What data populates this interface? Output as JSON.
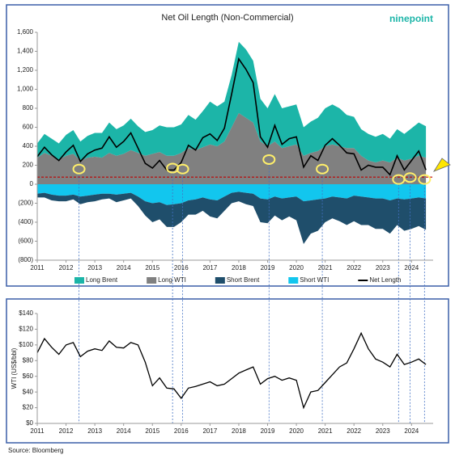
{
  "logo": "ninepoint",
  "source": "Source: Bloomberg",
  "chart_data": [
    {
      "type": "area",
      "title": "Net Oil Length (Non-Commercial)",
      "stacked": true,
      "legend": "bottom",
      "x": [
        2011,
        2011.25,
        2011.5,
        2011.75,
        2012,
        2012.25,
        2012.5,
        2012.75,
        2013,
        2013.25,
        2013.5,
        2013.75,
        2014,
        2014.25,
        2014.5,
        2014.75,
        2015,
        2015.25,
        2015.5,
        2015.75,
        2016,
        2016.25,
        2016.5,
        2016.75,
        2017,
        2017.25,
        2017.5,
        2017.75,
        2018,
        2018.25,
        2018.5,
        2018.75,
        2019,
        2019.25,
        2019.5,
        2019.75,
        2020,
        2020.25,
        2020.5,
        2020.75,
        2021,
        2021.25,
        2021.5,
        2021.75,
        2022,
        2022.25,
        2022.5,
        2022.75,
        2023,
        2023.25,
        2023.5,
        2023.75,
        2024,
        2024.25,
        2024.5
      ],
      "xlim": [
        2011,
        2024.75
      ],
      "xticks": [
        2011,
        2012,
        2013,
        2014,
        2015,
        2016,
        2017,
        2018,
        2019,
        2020,
        2021,
        2022,
        2023,
        2024
      ],
      "ylim": [
        -800,
        1600
      ],
      "yticks": [
        {
          "value": -800,
          "label": "(800)"
        },
        {
          "value": -600,
          "label": "(600)"
        },
        {
          "value": -400,
          "label": "(400)"
        },
        {
          "value": -200,
          "label": "(200)"
        },
        0,
        200,
        400,
        600,
        800,
        {
          "value": 1000,
          "label": "1,000"
        },
        {
          "value": 1200,
          "label": "1,200"
        },
        {
          "value": 1400,
          "label": "1,400"
        },
        {
          "value": 1600,
          "label": "1,600"
        }
      ],
      "reference_line": 75,
      "highlights": [
        {
          "x": 2012.45,
          "y": 160
        },
        {
          "x": 2015.7,
          "y": 170
        },
        {
          "x": 2016.05,
          "y": 160
        },
        {
          "x": 2019.05,
          "y": 260
        },
        {
          "x": 2020.9,
          "y": 160
        },
        {
          "x": 2023.55,
          "y": 50
        },
        {
          "x": 2023.95,
          "y": 70
        },
        {
          "x": 2024.45,
          "y": 50
        }
      ],
      "series": [
        {
          "name": "Long Brent",
          "color": "#1cb5a8",
          "values": [
            150,
            200,
            180,
            170,
            220,
            250,
            200,
            230,
            250,
            260,
            320,
            280,
            300,
            330,
            280,
            250,
            250,
            280,
            300,
            300,
            300,
            350,
            320,
            380,
            450,
            420,
            420,
            550,
            750,
            720,
            650,
            450,
            400,
            500,
            420,
            420,
            420,
            300,
            330,
            350,
            400,
            420,
            400,
            350,
            330,
            280,
            280,
            270,
            280,
            250,
            300,
            280,
            320,
            350,
            330
          ]
        },
        {
          "name": "Long WTI",
          "color": "#808080",
          "values": [
            280,
            330,
            300,
            260,
            300,
            320,
            250,
            280,
            290,
            280,
            330,
            300,
            320,
            360,
            330,
            300,
            320,
            340,
            300,
            300,
            330,
            380,
            360,
            390,
            420,
            400,
            450,
            600,
            750,
            700,
            650,
            450,
            400,
            450,
            380,
            400,
            420,
            300,
            330,
            350,
            400,
            420,
            400,
            380,
            380,
            300,
            250,
            230,
            250,
            230,
            280,
            250,
            270,
            300,
            280
          ]
        },
        {
          "name": "Short Brent",
          "color": "#1f4e6b",
          "values": [
            -40,
            -50,
            -60,
            -60,
            -60,
            -50,
            -80,
            -70,
            -70,
            -60,
            -50,
            -80,
            -70,
            -60,
            -100,
            -150,
            -200,
            -180,
            -230,
            -240,
            -200,
            -150,
            -160,
            -140,
            -180,
            -190,
            -150,
            -110,
            -100,
            -120,
            -130,
            -250,
            -250,
            -200,
            -230,
            -200,
            -250,
            -450,
            -350,
            -330,
            -250,
            -230,
            -250,
            -280,
            -270,
            -300,
            -290,
            -320,
            -320,
            -350,
            -280,
            -330,
            -320,
            -300,
            -330
          ]
        },
        {
          "name": "Short WTI",
          "color": "#12c6ee",
          "values": [
            -100,
            -90,
            -110,
            -120,
            -120,
            -110,
            -130,
            -120,
            -110,
            -100,
            -100,
            -110,
            -100,
            -90,
            -130,
            -180,
            -200,
            -190,
            -220,
            -210,
            -200,
            -170,
            -160,
            -140,
            -160,
            -170,
            -130,
            -90,
            -80,
            -90,
            -100,
            -150,
            -160,
            -130,
            -150,
            -140,
            -130,
            -180,
            -170,
            -160,
            -150,
            -130,
            -140,
            -150,
            -120,
            -130,
            -140,
            -150,
            -150,
            -170,
            -150,
            -160,
            -150,
            -140,
            -150
          ]
        },
        {
          "name": "Net Length",
          "color": "#000000",
          "type": "line",
          "values": [
            290,
            390,
            310,
            250,
            340,
            410,
            240,
            320,
            360,
            380,
            500,
            390,
            450,
            540,
            380,
            220,
            170,
            250,
            150,
            150,
            230,
            410,
            360,
            490,
            530,
            460,
            590,
            950,
            1320,
            1210,
            1070,
            500,
            390,
            620,
            420,
            480,
            500,
            180,
            300,
            250,
            410,
            480,
            410,
            330,
            320,
            150,
            200,
            180,
            180,
            100,
            300,
            150,
            250,
            350,
            150
          ]
        }
      ]
    },
    {
      "type": "line",
      "ylabel": "WTI (US$/bbl)",
      "color": "#000000",
      "x": [
        2011,
        2011.25,
        2011.5,
        2011.75,
        2012,
        2012.25,
        2012.5,
        2012.75,
        2013,
        2013.25,
        2013.5,
        2013.75,
        2014,
        2014.25,
        2014.5,
        2014.75,
        2015,
        2015.25,
        2015.5,
        2015.75,
        2016,
        2016.25,
        2016.5,
        2016.75,
        2017,
        2017.25,
        2017.5,
        2017.75,
        2018,
        2018.25,
        2018.5,
        2018.75,
        2019,
        2019.25,
        2019.5,
        2019.75,
        2020,
        2020.25,
        2020.5,
        2020.75,
        2021,
        2021.25,
        2021.5,
        2021.75,
        2022,
        2022.25,
        2022.5,
        2022.75,
        2023,
        2023.25,
        2023.5,
        2023.75,
        2024,
        2024.25,
        2024.5
      ],
      "values": [
        90,
        108,
        97,
        88,
        100,
        103,
        85,
        92,
        95,
        93,
        105,
        97,
        96,
        103,
        100,
        78,
        48,
        58,
        45,
        44,
        32,
        45,
        47,
        50,
        53,
        48,
        50,
        57,
        64,
        68,
        72,
        50,
        57,
        60,
        55,
        58,
        55,
        20,
        40,
        42,
        52,
        62,
        72,
        77,
        95,
        115,
        95,
        82,
        78,
        72,
        88,
        75,
        78,
        82,
        75
      ],
      "xlim": [
        2011,
        2024.75
      ],
      "xticks": [
        2011,
        2012,
        2013,
        2014,
        2015,
        2016,
        2017,
        2018,
        2019,
        2020,
        2021,
        2022,
        2023,
        2024
      ],
      "ylim": [
        0,
        140
      ],
      "yticks": [
        {
          "value": 0,
          "label": "$0"
        },
        {
          "value": 20,
          "label": "$20"
        },
        {
          "value": 40,
          "label": "$40"
        },
        {
          "value": 60,
          "label": "$60"
        },
        {
          "value": 80,
          "label": "$80"
        },
        {
          "value": 100,
          "label": "$100"
        },
        {
          "value": 120,
          "label": "$120"
        },
        {
          "value": 140,
          "label": "$140"
        }
      ]
    }
  ]
}
